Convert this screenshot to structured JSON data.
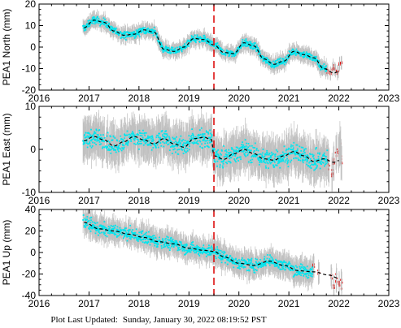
{
  "chart_data": [
    {
      "type": "scatter",
      "ylabel": "PEA1 North (mm)",
      "xlim": [
        2016,
        2023
      ],
      "ylim": [
        -20,
        20
      ],
      "xticks": [
        2016,
        2017,
        2018,
        2019,
        2020,
        2021,
        2022,
        2023
      ],
      "yticks": [
        -20,
        -10,
        0,
        10,
        20
      ],
      "grid": false,
      "vertical_marker": 2019.5,
      "series": [
        {
          "role": "observations",
          "x_range": [
            2016.88,
            2022.05
          ],
          "error_bar": 3
        },
        {
          "role": "model",
          "x": [
            2016.9,
            2017.1,
            2017.3,
            2017.5,
            2017.7,
            2017.9,
            2018.1,
            2018.3,
            2018.5,
            2018.7,
            2018.9,
            2019.1,
            2019.3,
            2019.5,
            2019.7,
            2019.9,
            2020.1,
            2020.3,
            2020.5,
            2020.7,
            2020.9,
            2021.1,
            2021.3,
            2021.5,
            2021.7,
            2021.9,
            2022.0
          ],
          "y": [
            9,
            12.5,
            11.5,
            7.5,
            5.5,
            6,
            8,
            7,
            -1,
            -2,
            0,
            4,
            3.5,
            1,
            -2.5,
            -3,
            2,
            0.5,
            -5.5,
            -8,
            -6.5,
            -2,
            -3.5,
            -5,
            -10,
            -12,
            -11.5
          ]
        },
        {
          "role": "recent",
          "x": [
            2021.78,
            2021.84,
            2021.88,
            2021.93,
            2021.98,
            2022.02,
            2022.05
          ],
          "y": [
            -11,
            -13,
            -9,
            -10,
            -12,
            -8,
            -7
          ]
        }
      ]
    },
    {
      "type": "scatter",
      "ylabel": "PEA1 East (mm)",
      "xlim": [
        2016,
        2023
      ],
      "ylim": [
        -10,
        10
      ],
      "xticks": [
        2016,
        2017,
        2018,
        2019,
        2020,
        2021,
        2022,
        2023
      ],
      "yticks": [
        -10,
        0,
        10
      ],
      "grid": false,
      "vertical_marker": 2019.5,
      "series": [
        {
          "role": "observations",
          "x_range": [
            2016.88,
            2022.05
          ],
          "error_bar": 4
        },
        {
          "role": "model",
          "x": [
            2016.9,
            2017.1,
            2017.3,
            2017.5,
            2017.7,
            2017.9,
            2018.1,
            2018.3,
            2018.5,
            2018.7,
            2018.9,
            2019.1,
            2019.3,
            2019.45,
            2019.5,
            2019.7,
            2019.9,
            2020.1,
            2020.3,
            2020.5,
            2020.7,
            2020.9,
            2021.1,
            2021.3,
            2021.5,
            2021.7,
            2021.9,
            2022.0
          ],
          "y": [
            2,
            3,
            2.2,
            0.8,
            1.8,
            3,
            2.2,
            1.3,
            2.5,
            1.3,
            0.5,
            2.5,
            2.8,
            2.3,
            -1.5,
            -2.3,
            -1,
            0,
            -1,
            -2.2,
            -2.5,
            -1.5,
            -0.5,
            -1.5,
            -2.8,
            -2.2,
            -3,
            -2.6
          ]
        },
        {
          "role": "recent",
          "x": [
            2021.8,
            2021.86,
            2021.9,
            2021.95,
            2022.0,
            2022.03,
            2022.05
          ],
          "y": [
            -4,
            -6,
            -3,
            -1,
            0,
            1,
            -2
          ]
        }
      ]
    },
    {
      "type": "scatter",
      "ylabel": "PEA1 Up (mm)",
      "xlim": [
        2016,
        2023
      ],
      "ylim": [
        -40,
        40
      ],
      "xticks": [
        2016,
        2017,
        2018,
        2019,
        2020,
        2021,
        2022,
        2023
      ],
      "yticks": [
        -40,
        -20,
        0,
        20,
        40
      ],
      "grid": false,
      "vertical_marker": 2019.5,
      "series": [
        {
          "role": "observations",
          "x_range": [
            2016.88,
            2022.05
          ],
          "error_bar": 10
        },
        {
          "role": "model",
          "x": [
            2016.9,
            2017.2,
            2017.5,
            2017.8,
            2018.1,
            2018.4,
            2018.7,
            2019.0,
            2019.3,
            2019.5,
            2019.7,
            2020.0,
            2020.3,
            2020.6,
            2020.9,
            2021.2,
            2021.5,
            2021.8,
            2022.0
          ],
          "y": [
            28,
            22,
            20,
            17,
            14,
            10,
            8,
            4,
            2,
            1,
            -4,
            -10,
            -12,
            -8,
            -12,
            -17,
            -18,
            -21,
            -24
          ]
        },
        {
          "role": "recent",
          "x": [
            2021.5,
            2021.6,
            2021.85,
            2021.9,
            2021.95,
            2022.0,
            2022.05
          ],
          "y": [
            -13,
            -20,
            -22,
            -32,
            -26,
            -30,
            -28
          ]
        }
      ]
    }
  ],
  "footer": {
    "label": "Plot Last Updated:",
    "timestamp": "Sunday, January 30, 2022 08:19:52 PST"
  },
  "colors": {
    "observations": "#00e5ee",
    "error_bars": "#c0c0c0",
    "model": "#000000",
    "recent": "#e00000",
    "marker_line": "#dd1111"
  }
}
